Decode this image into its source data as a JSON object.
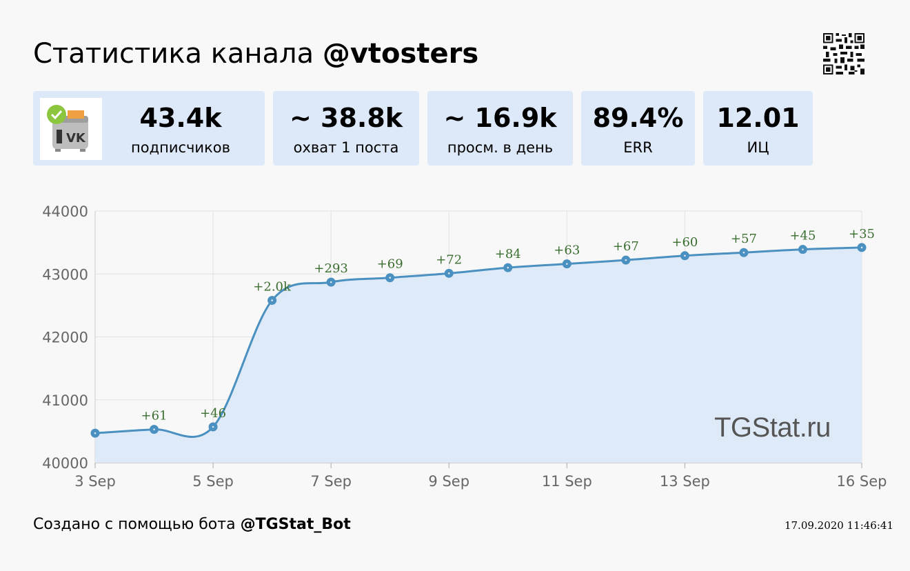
{
  "header": {
    "title_prefix": "Статистика канала",
    "title_handle": "@vtosters"
  },
  "stats": [
    {
      "value": "43.4k",
      "label": "подписчиков"
    },
    {
      "value": "~ 38.8k",
      "label": "охват 1 поста"
    },
    {
      "value": "~ 16.9k",
      "label": "просм. в день"
    },
    {
      "value": "89.4%",
      "label": "ERR"
    },
    {
      "value": "12.01",
      "label": "ИЦ"
    }
  ],
  "watermark": "TGStat.ru",
  "footer": {
    "prefix": "Создано с помощью бота",
    "bot": "@TGStat_Bot",
    "timestamp": "17.09.2020 11:46:41"
  },
  "colors": {
    "card_bg": "#dde8f8",
    "line": "#4a90c0",
    "area": "#dfeaf8",
    "label_green": "#3a6e2e"
  },
  "chart_data": {
    "type": "area",
    "x": [
      "2020-09-03",
      "2020-09-04",
      "2020-09-05",
      "2020-09-06",
      "2020-09-07",
      "2020-09-08",
      "2020-09-09",
      "2020-09-10",
      "2020-09-11",
      "2020-09-12",
      "2020-09-13",
      "2020-09-14",
      "2020-09-15",
      "2020-09-16"
    ],
    "y": [
      40470,
      40530,
      40570,
      42580,
      42870,
      42940,
      43010,
      43100,
      43160,
      43220,
      43290,
      43340,
      43390,
      43420
    ],
    "point_labels": [
      "",
      "+61",
      "+46",
      "+2.0k",
      "+293",
      "+69",
      "+72",
      "+84",
      "+63",
      "+67",
      "+60",
      "+57",
      "+45",
      "+35"
    ],
    "x_ticks": [
      "3 Sep",
      "5 Sep",
      "7 Sep",
      "9 Sep",
      "11 Sep",
      "13 Sep",
      "16 Sep"
    ],
    "x_tick_dates": [
      "2020-09-03",
      "2020-09-05",
      "2020-09-07",
      "2020-09-09",
      "2020-09-11",
      "2020-09-13",
      "2020-09-16"
    ],
    "y_ticks": [
      40000,
      41000,
      42000,
      43000,
      44000
    ],
    "ylim": [
      40000,
      44000
    ],
    "grid": true
  }
}
